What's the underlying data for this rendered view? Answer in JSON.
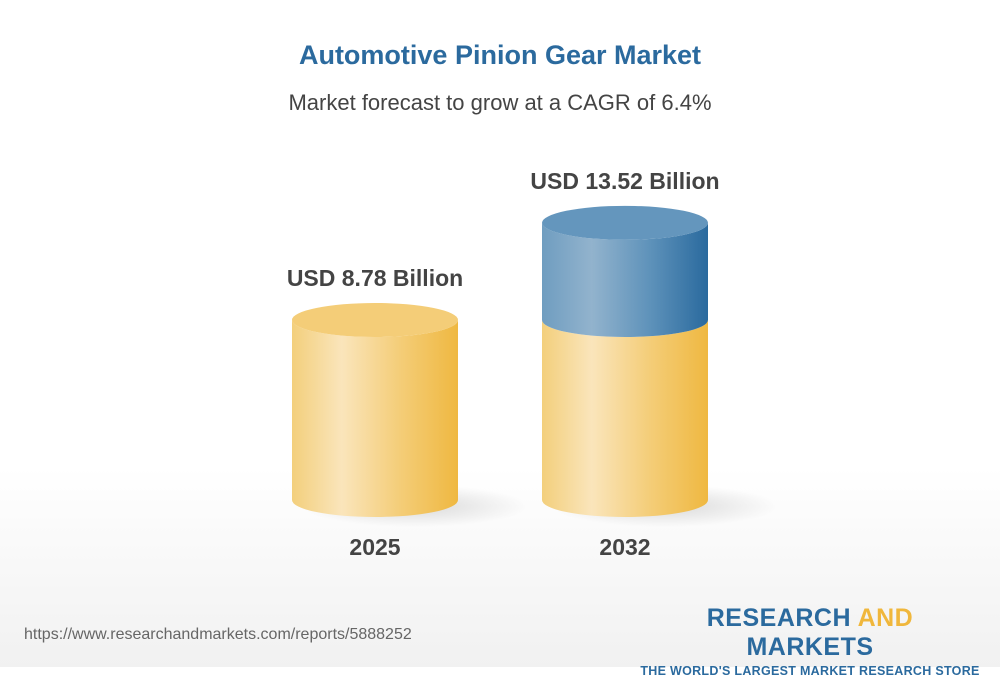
{
  "title": "Automotive Pinion Gear Market",
  "subtitle": "Market forecast to grow at a CAGR of 6.4%",
  "chart_data": {
    "type": "bar",
    "style": "3d-cylinder",
    "categories": [
      "2025",
      "2032"
    ],
    "values": [
      8.78,
      13.52
    ],
    "data_labels": [
      "USD 8.78 Billion",
      "USD 13.52 Billion"
    ],
    "unit": "USD Billion",
    "growth_segment_color": "#2b6a9e",
    "base_color": "#f0b73c"
  },
  "footer": {
    "url": "https://www.researchandmarkets.com/reports/5888252",
    "logo_part1": "RESEARCH ",
    "logo_part2": "AND",
    "logo_part3": " MARKETS",
    "tagline": "THE WORLD'S LARGEST MARKET RESEARCH STORE"
  }
}
